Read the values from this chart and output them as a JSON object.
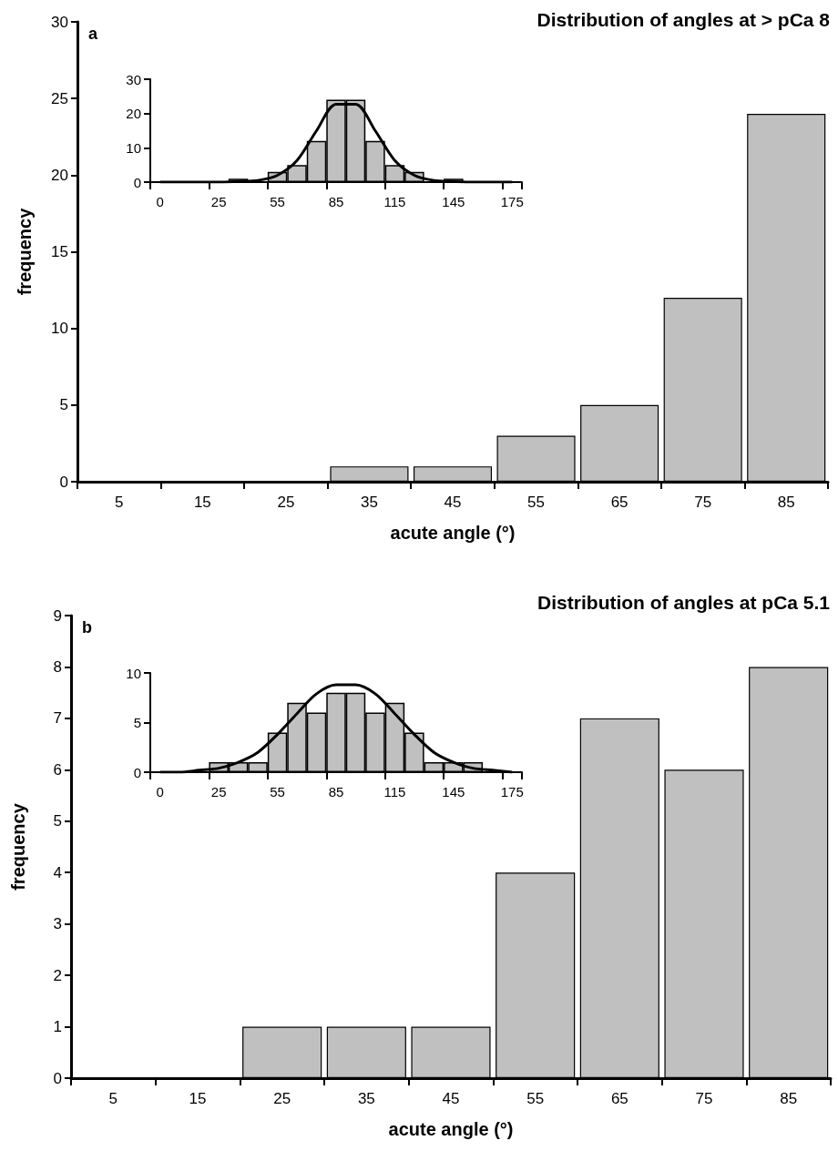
{
  "chart_data": [
    {
      "type": "bar",
      "title": "Distribution of angles at > pCa 8",
      "xlabel": "acute angle (°)",
      "ylabel": "frequency",
      "annotations": [
        "a"
      ],
      "categories": [
        "5",
        "15",
        "25",
        "35",
        "45",
        "55",
        "65",
        "75",
        "85"
      ],
      "values": [
        0,
        0,
        0,
        1,
        1,
        3,
        5,
        12,
        24
      ],
      "color": "#c0c0c0",
      "ylim": [
        0,
        30
      ],
      "yticks": [
        0,
        5,
        10,
        15,
        20,
        25,
        30
      ],
      "grid": false
    },
    {
      "type": "bar",
      "categories": [
        "0",
        null,
        null,
        "25",
        null,
        null,
        "55",
        null,
        null,
        "85",
        null,
        null,
        "115",
        null,
        null,
        "145",
        null,
        null,
        "175"
      ],
      "series": [
        {
          "color": "#c0c0c0",
          "values": [
            0,
            0,
            0,
            0,
            1,
            0,
            3,
            5,
            12,
            24,
            24,
            12,
            5,
            3,
            0,
            1,
            0,
            0,
            0
          ]
        },
        {
          "type": "line",
          "color": "#000000",
          "values": [
            0,
            0,
            0,
            0,
            0.2,
            0.5,
            2,
            6.3,
            15,
            22.7,
            22.7,
            15,
            6.3,
            2,
            0.5,
            0.2,
            0,
            0,
            0
          ]
        }
      ],
      "marker": "none",
      "ylim": [
        0,
        30
      ],
      "yticks": [
        0,
        10,
        20,
        30
      ],
      "grid": false
    },
    {
      "type": "bar",
      "title": "Distribution of angles at pCa 5.1",
      "xlabel": "acute angle (°)",
      "ylabel": "frequency",
      "annotations": [
        "b"
      ],
      "categories": [
        "5",
        "15",
        "25",
        "35",
        "45",
        "55",
        "65",
        "75",
        "85"
      ],
      "values": [
        0,
        0,
        1,
        1,
        1,
        4,
        7,
        6,
        8
      ],
      "color": "#c0c0c0",
      "ylim": [
        0,
        9
      ],
      "yticks": [
        0,
        1,
        2,
        3,
        4,
        5,
        6,
        7,
        8,
        9
      ],
      "grid": false
    },
    {
      "type": "bar",
      "categories": [
        "0",
        null,
        null,
        "25",
        null,
        null,
        "55",
        null,
        null,
        "85",
        null,
        null,
        "115",
        null,
        null,
        "145",
        null,
        null,
        "175"
      ],
      "series": [
        {
          "color": "#c0c0c0",
          "values": [
            0,
            0,
            0,
            1,
            1,
            1,
            4,
            7,
            6,
            8,
            8,
            6,
            7,
            4,
            1,
            1,
            1,
            0,
            0
          ]
        },
        {
          "type": "line",
          "color": "#000000",
          "values": [
            0,
            0,
            0.2,
            0.4,
            1,
            2,
            3.8,
            5.9,
            7.9,
            8.8,
            8.8,
            7.9,
            5.9,
            3.8,
            2,
            1,
            0.4,
            0.2,
            0
          ]
        }
      ],
      "marker": "none",
      "ylim": [
        0,
        10
      ],
      "yticks": [
        0,
        5,
        10
      ],
      "grid": false
    }
  ]
}
